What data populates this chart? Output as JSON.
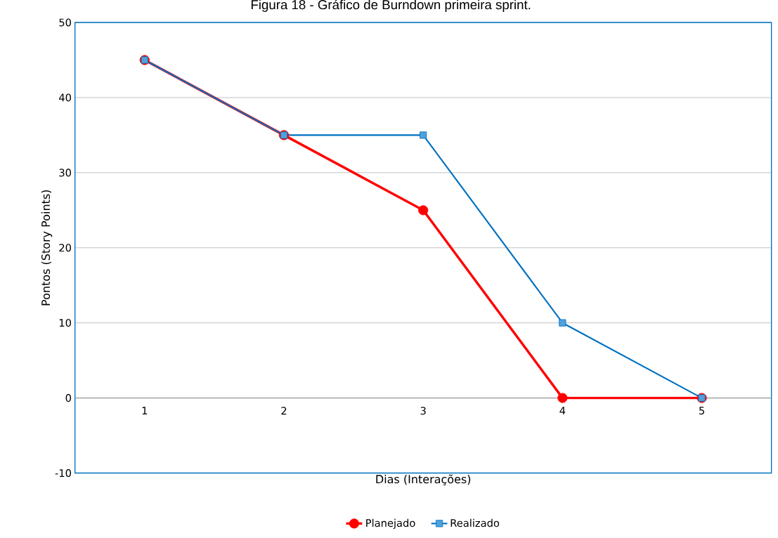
{
  "chart_data": {
    "type": "line",
    "title": "Figura 18 - Gráfico de Burndown primeira sprint.",
    "xlabel": "Dias (Interações)",
    "ylabel": "Pontos (Story Points)",
    "categories": [
      "1",
      "2",
      "3",
      "4",
      "5"
    ],
    "series": [
      {
        "name": "Planejado",
        "color": "#ff0000",
        "marker": "circle",
        "values": [
          45,
          35,
          25,
          0,
          0
        ]
      },
      {
        "name": "Realizado",
        "color": "#0070c0",
        "marker": "square",
        "values": [
          45,
          35,
          35,
          10,
          0
        ]
      }
    ],
    "ylim": [
      -10,
      50
    ],
    "yticks": [
      -10,
      0,
      10,
      20,
      30,
      40,
      50
    ],
    "grid": "y",
    "legend": "bottom"
  }
}
